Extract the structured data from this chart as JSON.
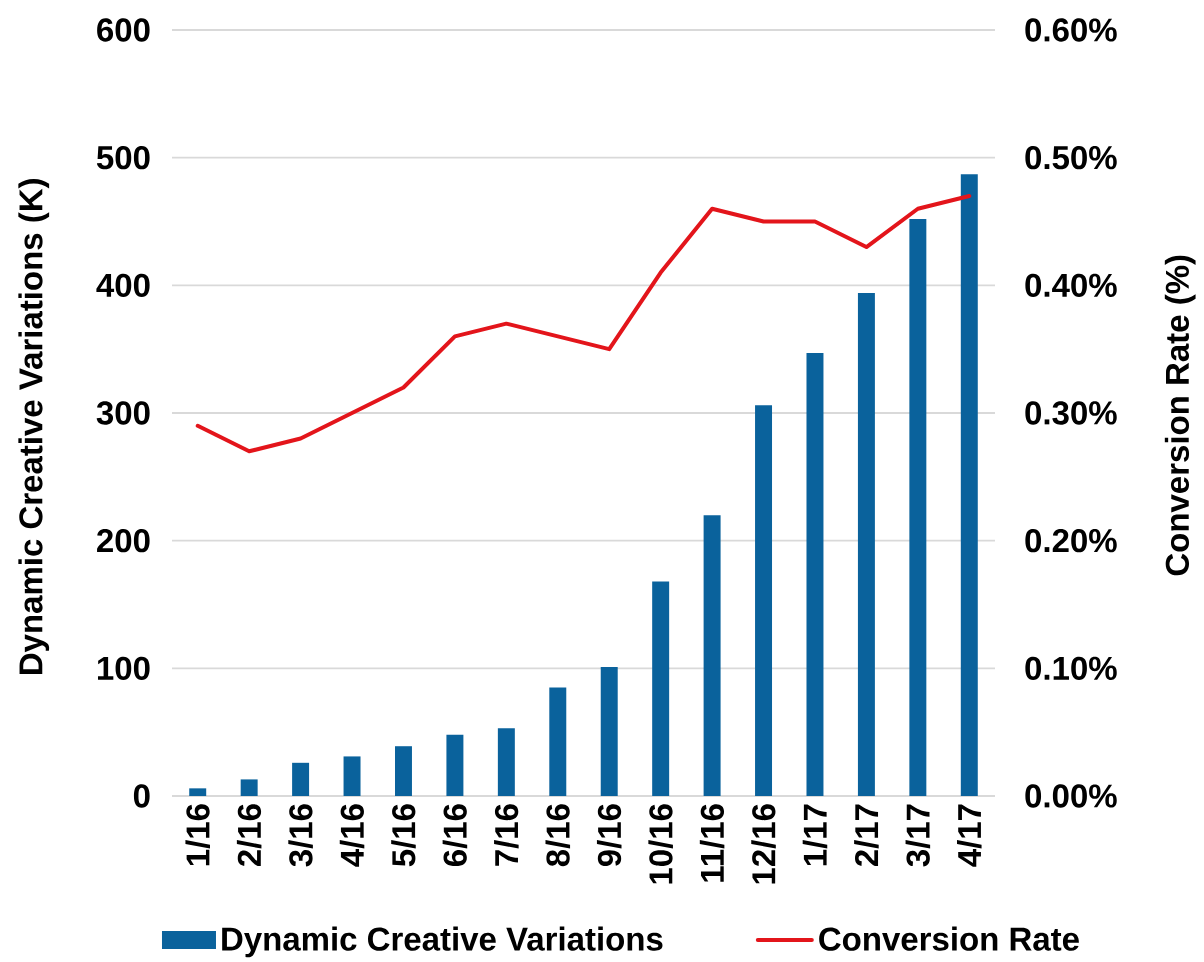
{
  "chart_data": {
    "type": "bar",
    "categories": [
      "1/16",
      "2/16",
      "3/16",
      "4/16",
      "5/16",
      "6/16",
      "7/16",
      "8/16",
      "9/16",
      "10/16",
      "11/16",
      "12/16",
      "1/17",
      "2/17",
      "3/17",
      "4/17"
    ],
    "series": [
      {
        "name": "Dynamic Creative Variations",
        "color": "#0a629c",
        "values": [
          6,
          13,
          26,
          31,
          39,
          48,
          53,
          85,
          101,
          168,
          220,
          306,
          347,
          394,
          452,
          487
        ]
      },
      {
        "name": "Conversion Rate",
        "type": "line",
        "axis": "y2",
        "color": "#e3151b",
        "values": [
          0.29,
          0.27,
          0.28,
          0.3,
          0.32,
          0.36,
          0.37,
          0.36,
          0.35,
          0.41,
          0.46,
          0.45,
          0.45,
          0.43,
          0.46,
          0.47
        ]
      }
    ],
    "ylabel": "Dynamic Creative Variations (K)",
    "y2label": "Conversion Rate (%)",
    "ylim": [
      0,
      600
    ],
    "yticks": [
      0,
      100,
      200,
      300,
      400,
      500,
      600
    ],
    "y2lim": [
      0,
      0.6
    ],
    "y2ticks": [
      {
        "value": 0,
        "label": "0.00%"
      },
      {
        "value": 0.1,
        "label": "0.10%"
      },
      {
        "value": 0.2,
        "label": "0.20%"
      },
      {
        "value": 0.3,
        "label": "0.30%"
      },
      {
        "value": 0.4,
        "label": "0.40%"
      },
      {
        "value": 0.5,
        "label": "0.50%"
      },
      {
        "value": 0.6,
        "label": "0.60%"
      }
    ],
    "grid": "y",
    "legend": "bottom"
  }
}
